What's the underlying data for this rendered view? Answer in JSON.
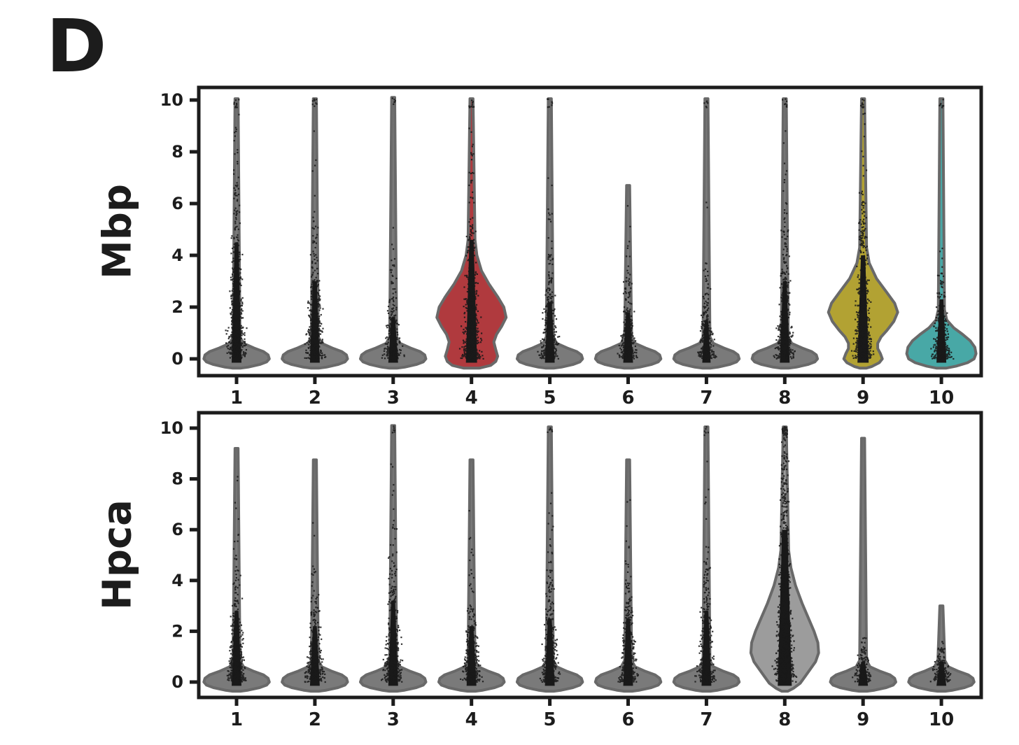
{
  "panel": {
    "label": "D"
  },
  "style": {
    "background": "#ffffff",
    "frame_color": "#1c1c1c",
    "text_color": "#1c1c1c",
    "point_color": "#191919",
    "gray_fill": "#7a7a7a",
    "gray_outline": "#696969",
    "red_fill": "#b03a3e",
    "olive_fill": "#b2a233",
    "teal_fill": "#48a8a6",
    "lightgray_fill": "#9c9c9c"
  },
  "profiles": {
    "narrow": [
      [
        0.85,
        0.09
      ],
      [
        0.6,
        0.18
      ],
      [
        0.42,
        0.45
      ],
      [
        0.28,
        0.7
      ],
      [
        0.15,
        0.82
      ],
      [
        0.0,
        0.85
      ],
      [
        -0.12,
        0.78
      ],
      [
        -0.22,
        0.6
      ],
      [
        -0.32,
        0.3
      ],
      [
        -0.36,
        0.1
      ]
    ],
    "red_bulge": [
      [
        4.6,
        0.09
      ],
      [
        4.0,
        0.14
      ],
      [
        3.4,
        0.26
      ],
      [
        2.9,
        0.45
      ],
      [
        2.4,
        0.68
      ],
      [
        2.0,
        0.84
      ],
      [
        1.6,
        0.9
      ],
      [
        1.25,
        0.78
      ],
      [
        0.95,
        0.65
      ],
      [
        0.65,
        0.58
      ],
      [
        0.35,
        0.63
      ],
      [
        0.1,
        0.68
      ],
      [
        -0.1,
        0.63
      ],
      [
        -0.25,
        0.5
      ],
      [
        -0.36,
        0.2
      ]
    ],
    "olive_bulge": [
      [
        4.3,
        0.09
      ],
      [
        3.7,
        0.16
      ],
      [
        3.1,
        0.35
      ],
      [
        2.6,
        0.6
      ],
      [
        2.15,
        0.82
      ],
      [
        1.8,
        0.9
      ],
      [
        1.45,
        0.8
      ],
      [
        1.1,
        0.62
      ],
      [
        0.85,
        0.47
      ],
      [
        0.6,
        0.38
      ],
      [
        0.4,
        0.38
      ],
      [
        0.2,
        0.45
      ],
      [
        0.0,
        0.5
      ],
      [
        -0.15,
        0.42
      ],
      [
        -0.3,
        0.22
      ],
      [
        -0.36,
        0.08
      ]
    ],
    "teal_low": [
      [
        1.9,
        0.08
      ],
      [
        1.5,
        0.14
      ],
      [
        1.2,
        0.32
      ],
      [
        0.95,
        0.55
      ],
      [
        0.7,
        0.75
      ],
      [
        0.45,
        0.87
      ],
      [
        0.2,
        0.9
      ],
      [
        0.0,
        0.85
      ],
      [
        -0.15,
        0.68
      ],
      [
        -0.28,
        0.38
      ],
      [
        -0.36,
        0.12
      ]
    ],
    "gray_teardrop": [
      [
        5.2,
        0.1
      ],
      [
        4.5,
        0.16
      ],
      [
        3.8,
        0.28
      ],
      [
        3.1,
        0.45
      ],
      [
        2.5,
        0.62
      ],
      [
        2.0,
        0.76
      ],
      [
        1.55,
        0.86
      ],
      [
        1.15,
        0.88
      ],
      [
        0.8,
        0.8
      ],
      [
        0.5,
        0.66
      ],
      [
        0.2,
        0.52
      ],
      [
        -0.05,
        0.4
      ],
      [
        -0.25,
        0.22
      ],
      [
        -0.36,
        0.08
      ]
    ]
  },
  "chart_data": [
    {
      "type": "violin",
      "title": "",
      "ylabel": "Mbp",
      "xlabel": "",
      "categories": [
        "1",
        "2",
        "3",
        "4",
        "5",
        "6",
        "7",
        "8",
        "9",
        "10"
      ],
      "ylim": [
        -0.65,
        10.5
      ],
      "y_ticks": [
        0,
        2,
        4,
        6,
        8,
        10
      ],
      "grid": false,
      "legend": "none",
      "violins": [
        {
          "category": "1",
          "fill": "#7a7a7a",
          "outline": "#696969",
          "profile": "narrow",
          "max_expr": 10.05,
          "dense_top": 4.5,
          "scatter_top": 9.9,
          "tau": 2.1,
          "n_points": 650,
          "col_halfwidth": 7,
          "cap_points": 10
        },
        {
          "category": "2",
          "fill": "#7a7a7a",
          "outline": "#696969",
          "profile": "narrow",
          "max_expr": 10.05,
          "dense_top": 3.0,
          "scatter_top": 9.9,
          "tau": 1.5,
          "n_points": 480,
          "col_halfwidth": 7,
          "cap_points": 8
        },
        {
          "category": "3",
          "fill": "#7a7a7a",
          "outline": "#696969",
          "profile": "narrow",
          "max_expr": 10.1,
          "dense_top": 1.6,
          "scatter_top": 9.5,
          "tau": 0.9,
          "n_points": 300,
          "col_halfwidth": 7,
          "cap_points": 6
        },
        {
          "category": "4",
          "fill": "#b03a3e",
          "outline": "#696969",
          "profile": "red_bulge",
          "max_expr": 10.05,
          "dense_top": 4.6,
          "scatter_top": 9.9,
          "tau": 1.8,
          "n_points": 700,
          "col_halfwidth": 8,
          "cap_points": 10
        },
        {
          "category": "5",
          "fill": "#7a7a7a",
          "outline": "#696969",
          "profile": "narrow",
          "max_expr": 10.05,
          "dense_top": 2.2,
          "scatter_top": 9.9,
          "tau": 1.2,
          "n_points": 420,
          "col_halfwidth": 7,
          "cap_points": 8
        },
        {
          "category": "6",
          "fill": "#7a7a7a",
          "outline": "#696969",
          "profile": "narrow",
          "max_expr": 6.7,
          "dense_top": 1.8,
          "scatter_top": 6.5,
          "tau": 1.0,
          "n_points": 320,
          "col_halfwidth": 7,
          "cap_points": 0
        },
        {
          "category": "7",
          "fill": "#7a7a7a",
          "outline": "#696969",
          "profile": "narrow",
          "max_expr": 10.05,
          "dense_top": 1.5,
          "scatter_top": 9.0,
          "tau": 1.0,
          "n_points": 300,
          "col_halfwidth": 6,
          "cap_points": 6
        },
        {
          "category": "8",
          "fill": "#7a7a7a",
          "outline": "#696969",
          "profile": "narrow",
          "max_expr": 10.05,
          "dense_top": 3.0,
          "scatter_top": 9.9,
          "tau": 1.5,
          "n_points": 450,
          "col_halfwidth": 7,
          "cap_points": 8
        },
        {
          "category": "9",
          "fill": "#b2a233",
          "outline": "#696969",
          "profile": "olive_bulge",
          "max_expr": 10.05,
          "dense_top": 4.0,
          "scatter_top": 9.9,
          "tau": 1.9,
          "n_points": 650,
          "col_halfwidth": 8,
          "cap_points": 10
        },
        {
          "category": "10",
          "fill": "#48a8a6",
          "outline": "#696969",
          "profile": "teal_low",
          "max_expr": 10.05,
          "dense_top": 2.3,
          "scatter_top": 9.9,
          "tau": 1.0,
          "n_points": 380,
          "col_halfwidth": 7,
          "cap_points": 8
        }
      ]
    },
    {
      "type": "violin",
      "title": "",
      "ylabel": "Hpca",
      "xlabel": "",
      "categories": [
        "1",
        "2",
        "3",
        "4",
        "5",
        "6",
        "7",
        "8",
        "9",
        "10"
      ],
      "ylim": [
        -0.65,
        10.5
      ],
      "y_ticks": [
        0,
        2,
        4,
        6,
        8,
        10
      ],
      "grid": false,
      "legend": "none",
      "violins": [
        {
          "category": "1",
          "fill": "#7a7a7a",
          "outline": "#696969",
          "profile": "narrow",
          "max_expr": 9.2,
          "dense_top": 2.8,
          "scatter_top": 8.8,
          "tau": 1.35,
          "n_points": 480,
          "col_halfwidth": 7,
          "cap_points": 0
        },
        {
          "category": "2",
          "fill": "#7a7a7a",
          "outline": "#696969",
          "profile": "narrow",
          "max_expr": 8.75,
          "dense_top": 2.2,
          "scatter_top": 8.3,
          "tau": 1.2,
          "n_points": 380,
          "col_halfwidth": 7,
          "cap_points": 0
        },
        {
          "category": "3",
          "fill": "#7a7a7a",
          "outline": "#696969",
          "profile": "narrow",
          "max_expr": 10.1,
          "dense_top": 3.2,
          "scatter_top": 9.6,
          "tau": 1.5,
          "n_points": 480,
          "col_halfwidth": 7,
          "cap_points": 6
        },
        {
          "category": "4",
          "fill": "#7a7a7a",
          "outline": "#696969",
          "profile": "narrow",
          "max_expr": 8.75,
          "dense_top": 2.2,
          "scatter_top": 8.3,
          "tau": 1.15,
          "n_points": 340,
          "col_halfwidth": 7,
          "cap_points": 0
        },
        {
          "category": "5",
          "fill": "#7a7a7a",
          "outline": "#696969",
          "profile": "narrow",
          "max_expr": 10.05,
          "dense_top": 2.5,
          "scatter_top": 9.6,
          "tau": 1.3,
          "n_points": 420,
          "col_halfwidth": 7,
          "cap_points": 6
        },
        {
          "category": "6",
          "fill": "#7a7a7a",
          "outline": "#696969",
          "profile": "narrow",
          "max_expr": 8.75,
          "dense_top": 2.5,
          "scatter_top": 8.3,
          "tau": 1.3,
          "n_points": 400,
          "col_halfwidth": 7,
          "cap_points": 0
        },
        {
          "category": "7",
          "fill": "#7a7a7a",
          "outline": "#696969",
          "profile": "narrow",
          "max_expr": 10.05,
          "dense_top": 2.8,
          "scatter_top": 9.6,
          "tau": 1.4,
          "n_points": 420,
          "col_halfwidth": 7,
          "cap_points": 6
        },
        {
          "category": "8",
          "fill": "#9c9c9c",
          "outline": "#696969",
          "profile": "gray_teardrop",
          "max_expr": 10.05,
          "dense_top": 6.0,
          "scatter_top": 10.0,
          "tau": 3.0,
          "n_points": 950,
          "col_halfwidth": 10,
          "cap_points": 40
        },
        {
          "category": "9",
          "fill": "#7a7a7a",
          "outline": "#696969",
          "profile": "narrow",
          "max_expr": 9.6,
          "dense_top": 0.8,
          "scatter_top": 1.8,
          "tau": 0.5,
          "n_points": 220,
          "col_halfwidth": 7,
          "cap_points": 0
        },
        {
          "category": "10",
          "fill": "#7a7a7a",
          "outline": "#696969",
          "profile": "narrow",
          "max_expr": 3.0,
          "dense_top": 0.8,
          "scatter_top": 1.6,
          "tau": 0.5,
          "n_points": 200,
          "col_halfwidth": 7,
          "cap_points": 0
        }
      ]
    }
  ]
}
